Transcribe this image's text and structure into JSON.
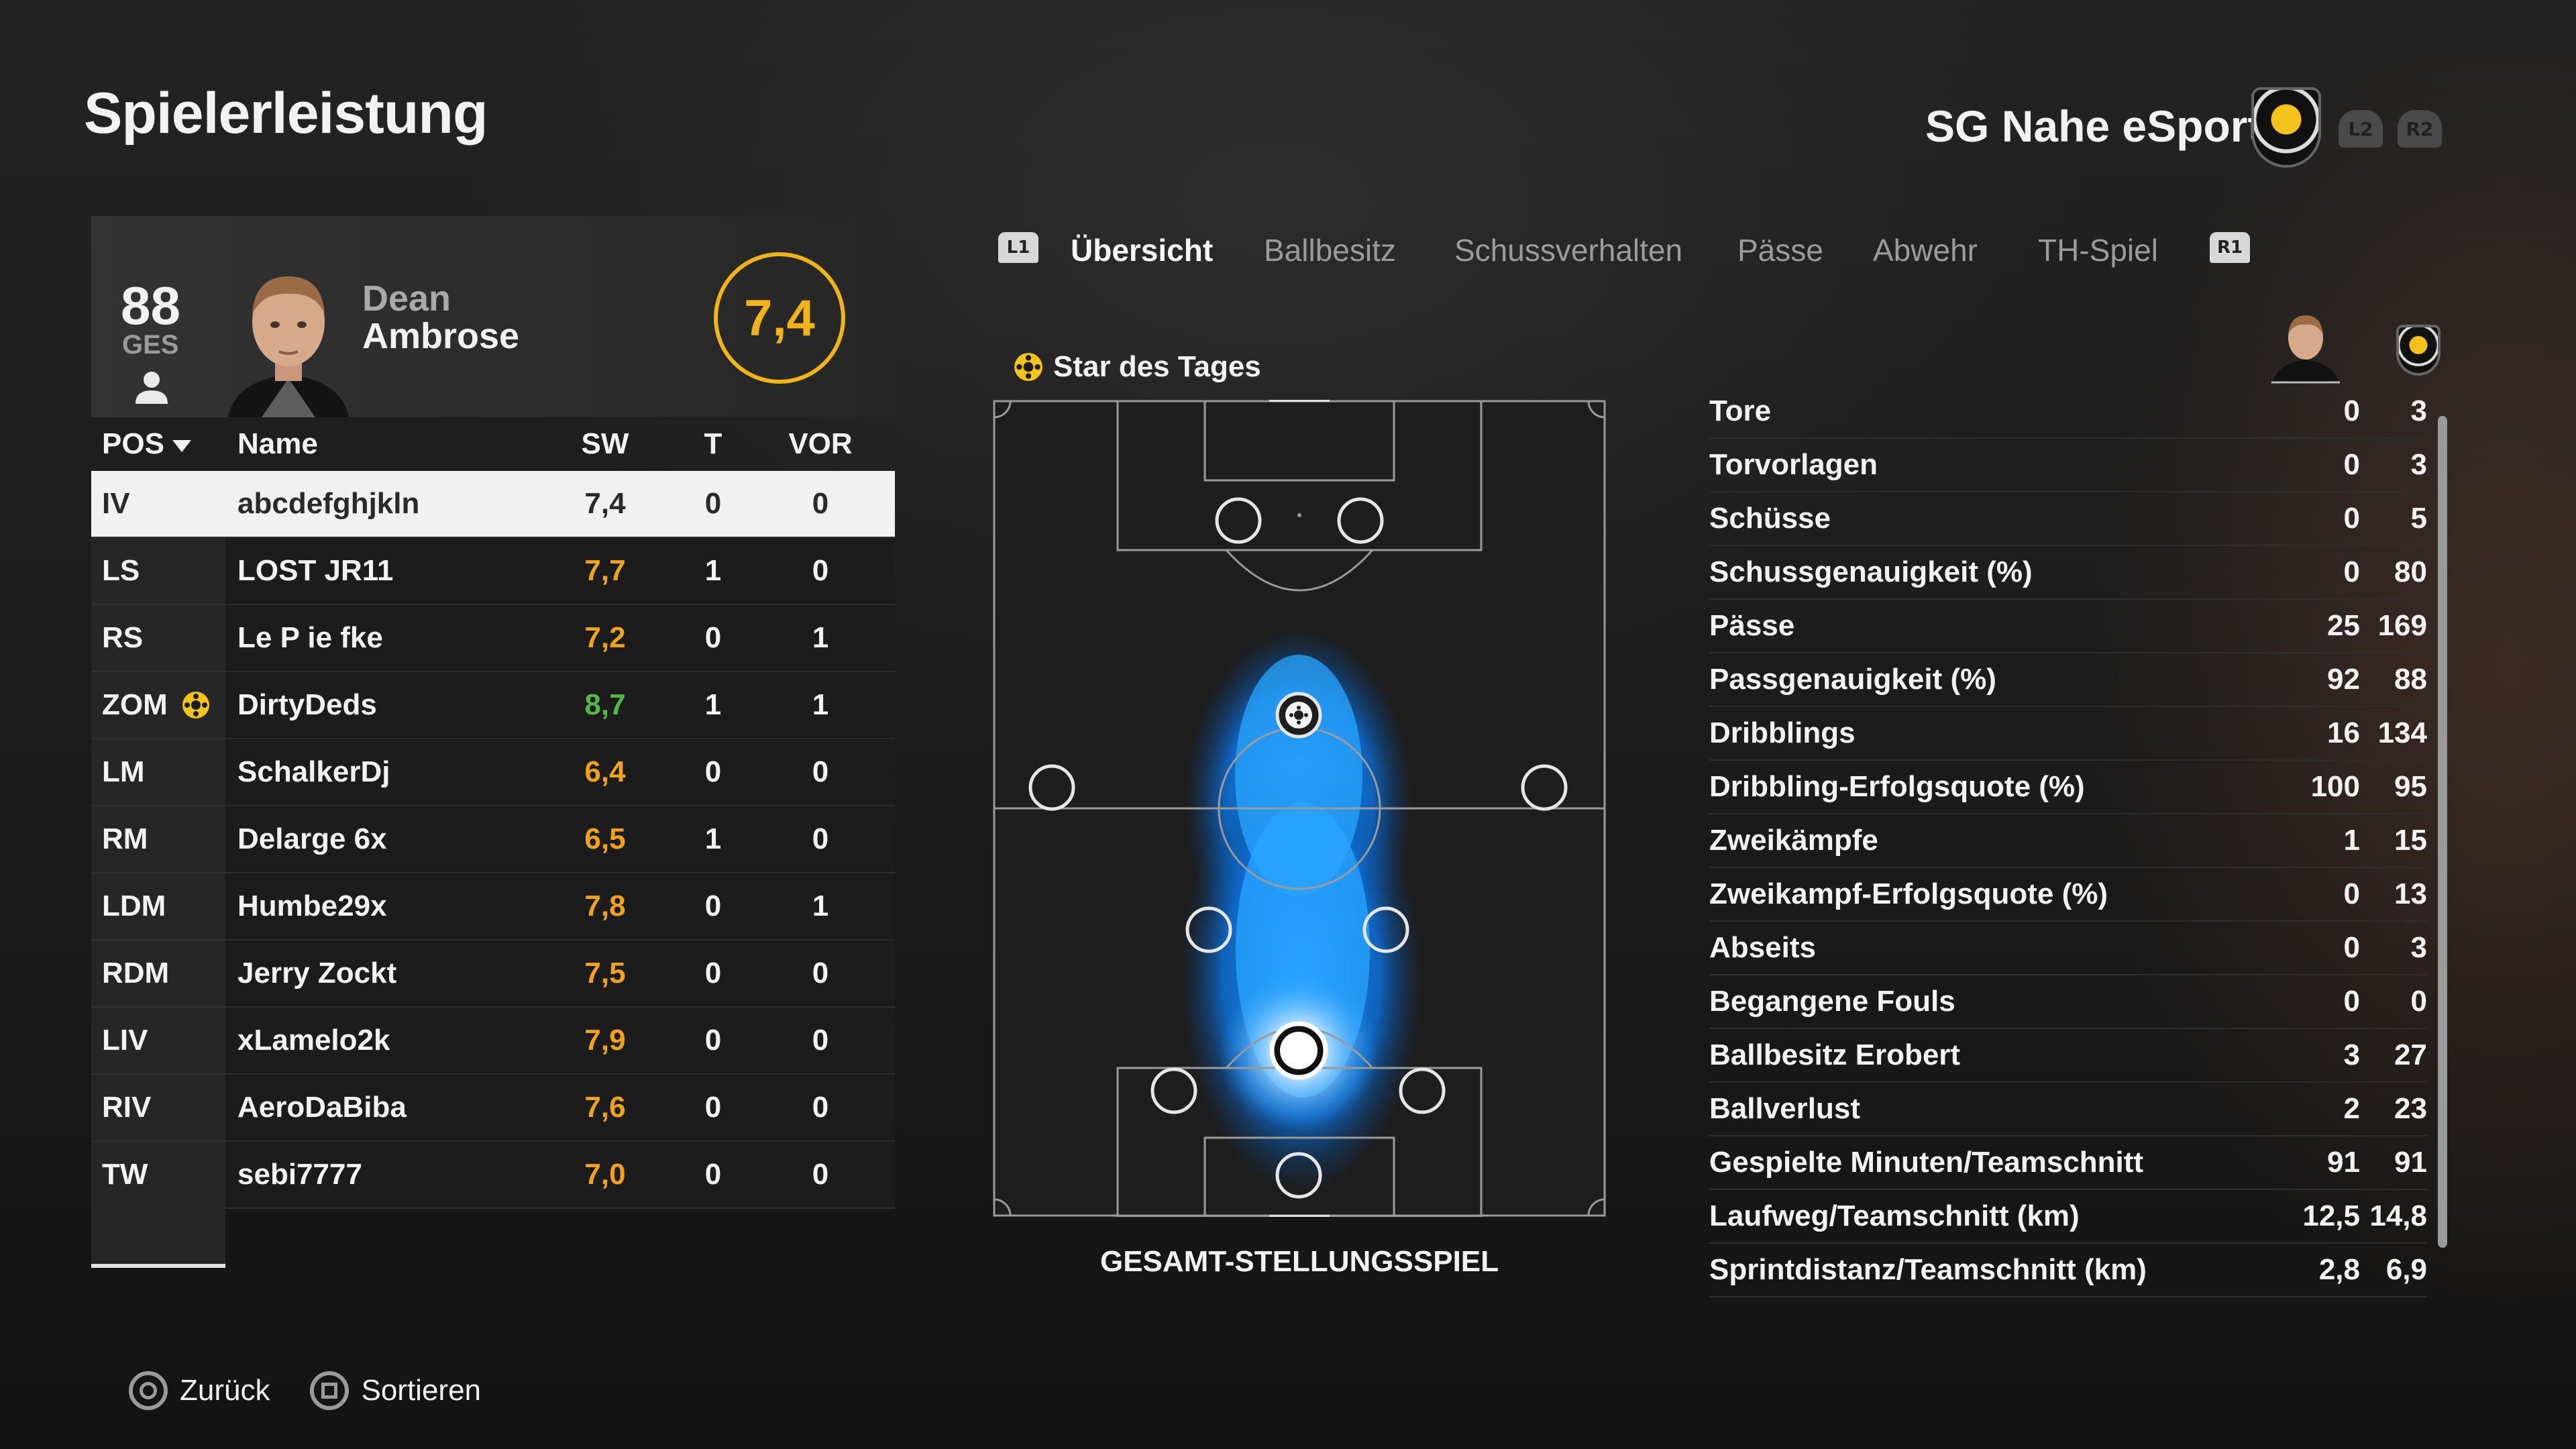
{
  "page_title": "Spielerleistung",
  "team": {
    "name": "SG Nahe eSports",
    "l2": "L2",
    "r2": "R2"
  },
  "player_card": {
    "overall": "88",
    "overall_label": "GES",
    "first_name": "Dean",
    "last_name": "Ambrose",
    "rating": "7,4"
  },
  "table": {
    "headers": {
      "pos": "POS",
      "name": "Name",
      "sw": "SW",
      "t": "T",
      "vor": "VOR"
    },
    "rows": [
      {
        "pos": "IV",
        "name": "abcdefghjkln",
        "sw": "7,4",
        "t": "0",
        "vor": "0"
      },
      {
        "pos": "LS",
        "name": "LOST JR11",
        "sw": "7,7",
        "t": "1",
        "vor": "0"
      },
      {
        "pos": "RS",
        "name": "Le P ie fke",
        "sw": "7,2",
        "t": "0",
        "vor": "1"
      },
      {
        "pos": "ZOM",
        "name": "DirtyDeds",
        "sw": "8,7",
        "t": "1",
        "vor": "1"
      },
      {
        "pos": "LM",
        "name": "SchalkerDj",
        "sw": "6,4",
        "t": "0",
        "vor": "0"
      },
      {
        "pos": "RM",
        "name": "Delarge 6x",
        "sw": "6,5",
        "t": "1",
        "vor": "0"
      },
      {
        "pos": "LDM",
        "name": "Humbe29x",
        "sw": "7,8",
        "t": "0",
        "vor": "1"
      },
      {
        "pos": "RDM",
        "name": "Jerry Zockt",
        "sw": "7,5",
        "t": "0",
        "vor": "0"
      },
      {
        "pos": "LIV",
        "name": "xLamelo2k",
        "sw": "7,9",
        "t": "0",
        "vor": "0"
      },
      {
        "pos": "RIV",
        "name": "AeroDaBiba",
        "sw": "7,6",
        "t": "0",
        "vor": "0"
      },
      {
        "pos": "TW",
        "name": "sebi7777",
        "sw": "7,0",
        "t": "0",
        "vor": "0"
      }
    ]
  },
  "tabs": {
    "l1": "L1",
    "r1": "R1",
    "items": [
      "Übersicht",
      "Ballbesitz",
      "Schussverhalten",
      "Pässe",
      "Abwehr",
      "TH-Spiel"
    ],
    "active_index": 0
  },
  "pitch": {
    "star_label": "Star des Tages",
    "caption": "GESAMT-STELLUNGSSPIEL"
  },
  "stats": [
    {
      "label": "Tore",
      "player": "0",
      "team": "3"
    },
    {
      "label": "Torvorlagen",
      "player": "0",
      "team": "3"
    },
    {
      "label": "Schüsse",
      "player": "0",
      "team": "5"
    },
    {
      "label": "Schussgenauigkeit (%)",
      "player": "0",
      "team": "80"
    },
    {
      "label": "Pässe",
      "player": "25",
      "team": "169"
    },
    {
      "label": "Passgenauigkeit (%)",
      "player": "92",
      "team": "88"
    },
    {
      "label": "Dribblings",
      "player": "16",
      "team": "134"
    },
    {
      "label": "Dribbling-Erfolgsquote (%)",
      "player": "100",
      "team": "95"
    },
    {
      "label": "Zweikämpfe",
      "player": "1",
      "team": "15"
    },
    {
      "label": "Zweikampf-Erfolgsquote (%)",
      "player": "0",
      "team": "13"
    },
    {
      "label": "Abseits",
      "player": "0",
      "team": "3"
    },
    {
      "label": "Begangene Fouls",
      "player": "0",
      "team": "0"
    },
    {
      "label": "Ballbesitz Erobert",
      "player": "3",
      "team": "27"
    },
    {
      "label": "Ballverlust",
      "player": "2",
      "team": "23"
    },
    {
      "label": "Gespielte Minuten/Teamschnitt",
      "player": "91",
      "team": "91"
    },
    {
      "label": "Laufweg/Teamschnitt (km)",
      "player": "12,5",
      "team": "14,8"
    },
    {
      "label": "Sprintdistanz/Teamschnitt (km)",
      "player": "2,8",
      "team": "6,9"
    }
  ],
  "footer": {
    "back": "Zurück",
    "sort": "Sortieren"
  },
  "colors": {
    "accent_yellow": "#f0b418",
    "rating_orange": "#f0a21c",
    "rating_green": "#52b847",
    "heat_blue": "#1e90ff"
  }
}
